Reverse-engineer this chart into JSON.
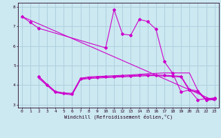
{
  "xlabel": "Windchill (Refroidissement éolien,°C)",
  "bg_color": "#cce8f0",
  "line_color": "#cc00cc",
  "grid_color": "#aaccdd",
  "xlim": [
    -0.5,
    23.5
  ],
  "ylim": [
    2.85,
    8.2
  ],
  "yticks": [
    3,
    4,
    5,
    6,
    7,
    8
  ],
  "xticks": [
    0,
    1,
    2,
    3,
    4,
    5,
    6,
    7,
    8,
    9,
    10,
    11,
    12,
    13,
    14,
    15,
    16,
    17,
    18,
    19,
    20,
    21,
    22,
    23
  ],
  "series": [
    {
      "x": [
        0,
        1,
        2,
        10,
        11,
        12,
        13,
        14,
        15,
        16,
        17,
        18,
        19,
        20,
        21,
        22,
        23
      ],
      "y": [
        7.5,
        7.2,
        6.9,
        5.9,
        7.85,
        6.6,
        6.55,
        7.35,
        7.25,
        6.85,
        5.2,
        4.6,
        3.65,
        3.75,
        3.25,
        3.3,
        3.35
      ],
      "marker": true
    },
    {
      "x": [
        0,
        23
      ],
      "y": [
        7.5,
        3.2
      ],
      "marker": false
    },
    {
      "x": [
        2,
        3,
        4,
        5,
        6,
        7,
        8,
        9,
        10,
        11,
        12,
        13,
        14,
        15,
        16,
        17,
        18,
        19,
        20,
        21,
        22,
        23
      ],
      "y": [
        4.45,
        4.05,
        3.68,
        3.6,
        3.58,
        4.35,
        4.42,
        4.44,
        4.46,
        4.48,
        4.5,
        4.52,
        4.55,
        4.58,
        4.6,
        4.62,
        4.62,
        4.62,
        4.62,
        3.72,
        3.28,
        3.32
      ],
      "marker": false
    },
    {
      "x": [
        2,
        3,
        4,
        5,
        6,
        7,
        8,
        9,
        10,
        11,
        12,
        13,
        14,
        15,
        16,
        17,
        18,
        19,
        20,
        21,
        22,
        23
      ],
      "y": [
        4.42,
        4.02,
        3.65,
        3.58,
        3.55,
        4.32,
        4.38,
        4.4,
        4.42,
        4.44,
        4.46,
        4.48,
        4.5,
        4.52,
        4.52,
        4.5,
        4.48,
        4.45,
        3.78,
        3.7,
        3.25,
        3.3
      ],
      "marker": true
    },
    {
      "x": [
        2,
        3,
        4,
        5,
        6,
        7,
        8,
        9,
        10,
        11,
        12,
        13,
        14,
        15,
        16,
        17,
        18,
        19,
        20,
        21,
        22,
        23
      ],
      "y": [
        4.35,
        3.98,
        3.62,
        3.55,
        3.5,
        4.28,
        4.34,
        4.36,
        4.38,
        4.4,
        4.42,
        4.44,
        4.46,
        4.48,
        4.48,
        4.46,
        4.44,
        4.41,
        3.72,
        3.65,
        3.22,
        3.27
      ],
      "marker": false
    }
  ]
}
